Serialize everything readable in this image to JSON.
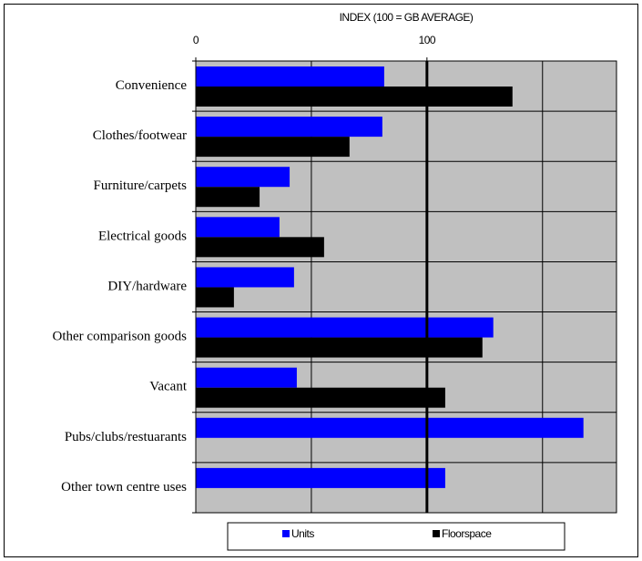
{
  "chart_data": {
    "type": "hbar",
    "title": "INDEX (100 = GB AVERAGE)",
    "categories": [
      "Convenience",
      "Clothes/footwear",
      "Furniture/carpets",
      "Electrical goods",
      "DIY/hardware",
      "Other comparison goods",
      "Vacant",
      "Pubs/clubs/restuarants",
      "Other town centre uses"
    ],
    "series": [
      {
        "name": "Units",
        "color": "#0000ff",
        "values": [
          81.5,
          80.7,
          40.6,
          36.2,
          42.5,
          128.7,
          43.7,
          167.7,
          107.9
        ]
      },
      {
        "name": "Floorspace",
        "color": "#000000",
        "values": [
          137,
          66.5,
          27.6,
          55.5,
          16.5,
          124,
          107.9,
          null,
          null
        ]
      }
    ],
    "xlim": [
      0,
      182
    ],
    "xticks": [
      0,
      100
    ],
    "xgrid": [
      50,
      100,
      150
    ],
    "reference_line": 100,
    "grid": true,
    "plot_background": "#c0c0c0",
    "legend": "bottom"
  }
}
